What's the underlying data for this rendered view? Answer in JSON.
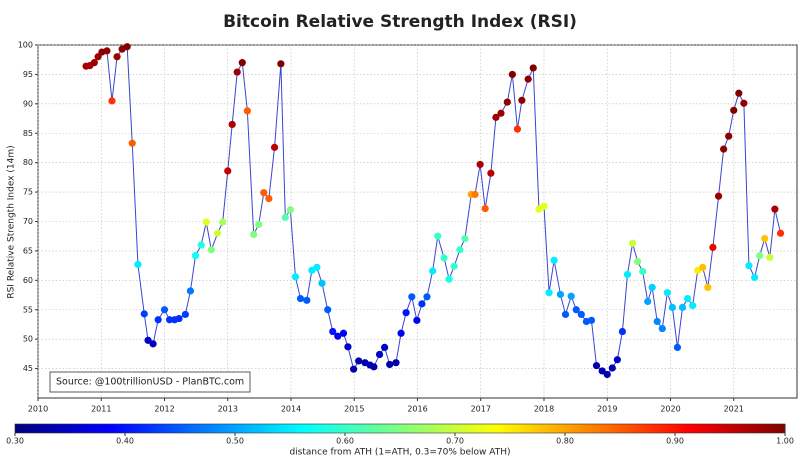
{
  "chart_data": {
    "type": "scatter",
    "title": "Bitcoin Relative Strength Index (RSI)",
    "ylabel": "RSI Relative Strength Index (14m)",
    "source": "Source: @100trillionUSD  -  PlanBTC.com",
    "colorbar_label": "distance from ATH (1=ATH, 0.3=70% below ATH)",
    "line_color": "#3a45d0",
    "grid": true,
    "xlim": [
      2010,
      2022
    ],
    "xticks": [
      2010,
      2011,
      2012,
      2013,
      2014,
      2015,
      2016,
      2017,
      2018,
      2019,
      2020,
      2021
    ],
    "ylim": [
      40,
      100
    ],
    "yticks": [
      45,
      50,
      55,
      60,
      65,
      70,
      75,
      80,
      85,
      90,
      95,
      100
    ],
    "clim": [
      0.3,
      1.0
    ],
    "cticks": [
      {
        "value": 0.3,
        "label": "0.30"
      },
      {
        "value": 0.4,
        "label": "0.40"
      },
      {
        "value": 0.5,
        "label": "0.50"
      },
      {
        "value": 0.6,
        "label": "0.60"
      },
      {
        "value": 0.7,
        "label": "0.70"
      },
      {
        "value": 0.8,
        "label": "0.80"
      },
      {
        "value": 0.9,
        "label": "0.90"
      },
      {
        "value": 1.0,
        "label": "1.00"
      }
    ],
    "x": [
      2010.76,
      2010.82,
      2010.89,
      2010.95,
      2011.01,
      2011.09,
      2011.17,
      2011.25,
      2011.33,
      2011.41,
      2011.49,
      2011.58,
      2011.68,
      2011.74,
      2011.82,
      2011.9,
      2012.0,
      2012.08,
      2012.16,
      2012.23,
      2012.33,
      2012.41,
      2012.49,
      2012.58,
      2012.66,
      2012.74,
      2012.84,
      2012.92,
      2013.0,
      2013.07,
      2013.15,
      2013.23,
      2013.31,
      2013.41,
      2013.49,
      2013.57,
      2013.65,
      2013.74,
      2013.84,
      2013.91,
      2013.99,
      2014.07,
      2014.15,
      2014.25,
      2014.33,
      2014.41,
      2014.49,
      2014.58,
      2014.66,
      2014.74,
      2014.83,
      2014.9,
      2014.99,
      2015.07,
      2015.17,
      2015.25,
      2015.31,
      2015.4,
      2015.48,
      2015.56,
      2015.66,
      2015.74,
      2015.82,
      2015.91,
      2015.99,
      2016.07,
      2016.15,
      2016.24,
      2016.32,
      2016.42,
      2016.5,
      2016.58,
      2016.67,
      2016.75,
      2016.85,
      2016.91,
      2016.99,
      2017.07,
      2017.16,
      2017.24,
      2017.32,
      2017.42,
      2017.5,
      2017.58,
      2017.65,
      2017.75,
      2017.83,
      2017.92,
      2018.0,
      2018.08,
      2018.16,
      2018.26,
      2018.34,
      2018.43,
      2018.51,
      2018.59,
      2018.67,
      2018.75,
      2018.83,
      2018.92,
      2019.0,
      2019.08,
      2019.16,
      2019.24,
      2019.32,
      2019.4,
      2019.48,
      2019.56,
      2019.64,
      2019.71,
      2019.79,
      2019.87,
      2019.95,
      2020.03,
      2020.11,
      2020.19,
      2020.27,
      2020.35,
      2020.43,
      2020.51,
      2020.59,
      2020.67,
      2020.76,
      2020.84,
      2020.92,
      2021.0,
      2021.08,
      2021.16,
      2021.24,
      2021.33,
      2021.41,
      2021.49,
      2021.57,
      2021.65,
      2021.74
    ],
    "values": [
      96.4,
      96.5,
      97,
      98,
      98.8,
      99,
      90.5,
      98,
      99.3,
      99.7,
      83.3,
      62.7,
      54.3,
      49.8,
      49.2,
      53.3,
      55,
      53.3,
      53.3,
      53.5,
      54.2,
      58.2,
      64.2,
      66,
      69.9,
      65.2,
      68,
      69.9,
      78.6,
      86.5,
      95.4,
      97,
      88.8,
      67.8,
      69.5,
      74.9,
      73.9,
      82.6,
      96.8,
      70.7,
      72,
      60.6,
      56.9,
      56.6,
      61.7,
      62.2,
      59.5,
      55,
      51.3,
      50.5,
      51,
      48.7,
      44.9,
      46.3,
      46,
      45.6,
      45.3,
      47.4,
      48.6,
      45.7,
      46,
      51,
      54.5,
      57.2,
      53.2,
      56,
      57.2,
      61.6,
      67.5,
      63.8,
      60.2,
      62.4,
      65.2,
      67.1,
      74.6,
      74.6,
      79.7,
      72.2,
      78.2,
      87.7,
      88.4,
      90.3,
      95,
      85.7,
      90.6,
      94.2,
      96.1,
      72.1,
      72.6,
      57.9,
      63.4,
      57.6,
      54.2,
      57.3,
      55,
      54.2,
      53,
      53.2,
      45.5,
      44.6,
      44,
      45.1,
      46.5,
      51.3,
      61,
      66.3,
      63.2,
      61.5,
      56.4,
      58.8,
      53,
      51.8,
      57.9,
      55.4,
      48.6,
      55.4,
      56.9,
      55.7,
      61.7,
      62.2,
      58.8,
      65.6,
      74.3,
      82.3,
      84.5,
      88.9,
      91.8,
      90.1,
      62.5,
      60.5,
      64.2,
      67.1,
      63.9,
      72.1,
      68
    ],
    "distance": [
      0.97,
      0.97,
      0.98,
      0.98,
      0.99,
      0.99,
      0.88,
      0.98,
      0.99,
      1.0,
      0.85,
      0.55,
      0.43,
      0.35,
      0.34,
      0.42,
      0.45,
      0.42,
      0.42,
      0.42,
      0.43,
      0.47,
      0.57,
      0.58,
      0.72,
      0.65,
      0.7,
      0.68,
      0.95,
      0.97,
      0.98,
      1.0,
      0.85,
      0.65,
      0.65,
      0.85,
      0.85,
      0.96,
      1.0,
      0.62,
      0.65,
      0.55,
      0.45,
      0.45,
      0.55,
      0.55,
      0.52,
      0.45,
      0.4,
      0.38,
      0.38,
      0.35,
      0.33,
      0.33,
      0.33,
      0.33,
      0.33,
      0.35,
      0.35,
      0.33,
      0.33,
      0.38,
      0.4,
      0.45,
      0.38,
      0.42,
      0.45,
      0.55,
      0.6,
      0.6,
      0.58,
      0.6,
      0.6,
      0.62,
      0.8,
      0.83,
      0.97,
      0.85,
      0.96,
      0.98,
      0.98,
      0.99,
      1.0,
      0.88,
      0.99,
      0.99,
      1.0,
      0.72,
      0.72,
      0.55,
      0.55,
      0.5,
      0.45,
      0.5,
      0.45,
      0.45,
      0.45,
      0.45,
      0.33,
      0.33,
      0.33,
      0.33,
      0.35,
      0.42,
      0.55,
      0.7,
      0.65,
      0.6,
      0.5,
      0.53,
      0.48,
      0.48,
      0.55,
      0.52,
      0.45,
      0.52,
      0.55,
      0.55,
      0.75,
      0.78,
      0.78,
      0.92,
      0.98,
      0.99,
      0.99,
      1.0,
      1.0,
      0.99,
      0.55,
      0.55,
      0.65,
      0.78,
      0.7,
      0.97,
      0.88
    ]
  }
}
